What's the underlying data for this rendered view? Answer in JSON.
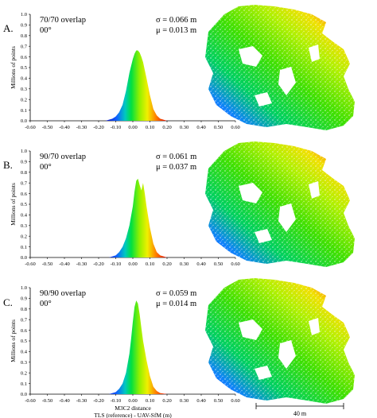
{
  "panels": [
    {
      "letter": "A.",
      "overlap": "70/70 overlap",
      "angle": "00°",
      "sigma": "σ = 0.066 m",
      "mu": "μ = 0.013 m"
    },
    {
      "letter": "B.",
      "overlap": "90/70 overlap",
      "angle": "00°",
      "sigma": "σ = 0.061 m",
      "mu": "μ = 0.037 m"
    },
    {
      "letter": "C.",
      "overlap": "90/90 overlap",
      "angle": "00°",
      "sigma": "σ = 0.059 m",
      "mu": "μ = 0.014 m"
    }
  ],
  "chart_data": [
    {
      "type": "area",
      "ylabel": "Millions of points",
      "xlim": [
        -0.6,
        0.6
      ],
      "ylim": [
        0,
        1.0
      ],
      "x_ticks": [
        "-0.60",
        "-0.50",
        "-0.40",
        "-0.30",
        "-0.20",
        "-0.10",
        "0.00",
        "0.10",
        "0.20",
        "0.30",
        "0.40",
        "0.50",
        "0.60"
      ],
      "y_ticks": [
        "0.0",
        "0.1",
        "0.2",
        "0.3",
        "0.4",
        "0.5",
        "0.6",
        "0.7",
        "0.8",
        "0.9",
        "1.0"
      ],
      "x": [
        -0.16,
        -0.12,
        -0.1,
        -0.08,
        -0.06,
        -0.04,
        -0.02,
        0.0,
        0.01,
        0.02,
        0.03,
        0.04,
        0.05,
        0.06,
        0.08,
        0.1,
        0.12,
        0.14,
        0.16,
        0.2
      ],
      "values": [
        0.0,
        0.02,
        0.04,
        0.08,
        0.15,
        0.28,
        0.45,
        0.58,
        0.63,
        0.66,
        0.66,
        0.64,
        0.6,
        0.55,
        0.4,
        0.24,
        0.11,
        0.05,
        0.02,
        0.0
      ]
    },
    {
      "type": "area",
      "ylabel": "Millions of points",
      "xlim": [
        -0.6,
        0.6
      ],
      "ylim": [
        0,
        1.0
      ],
      "x_ticks": [
        "-0.60",
        "-0.50",
        "-0.40",
        "-0.30",
        "-0.20",
        "-0.10",
        "0.00",
        "0.10",
        "0.20",
        "0.30",
        "0.40",
        "0.50",
        "0.60"
      ],
      "y_ticks": [
        "0.0",
        "0.1",
        "0.2",
        "0.3",
        "0.4",
        "0.5",
        "0.6",
        "0.7",
        "0.8",
        "0.9",
        "1.0"
      ],
      "x": [
        -0.14,
        -0.1,
        -0.08,
        -0.06,
        -0.04,
        -0.02,
        0.0,
        0.01,
        0.02,
        0.03,
        0.04,
        0.05,
        0.06,
        0.07,
        0.08,
        0.1,
        0.12,
        0.14,
        0.16,
        0.2
      ],
      "values": [
        0.0,
        0.02,
        0.05,
        0.1,
        0.18,
        0.3,
        0.48,
        0.62,
        0.72,
        0.74,
        0.68,
        0.63,
        0.7,
        0.6,
        0.48,
        0.28,
        0.13,
        0.05,
        0.02,
        0.0
      ]
    },
    {
      "type": "area",
      "ylabel": "Millions of points",
      "xlabel": "M3C2 distance\nTLS (reference) - UAV-SfM (m)",
      "xlim": [
        -0.6,
        0.6
      ],
      "ylim": [
        0,
        1.0
      ],
      "x_ticks": [
        "-0.60",
        "-0.50",
        "-0.40",
        "-0.30",
        "-0.20",
        "-0.10",
        "0.00",
        "0.10",
        "0.20",
        "0.30",
        "0.40",
        "0.50",
        "0.60"
      ],
      "y_ticks": [
        "0.0",
        "0.1",
        "0.2",
        "0.3",
        "0.4",
        "0.5",
        "0.6",
        "0.7",
        "0.8",
        "0.9",
        "1.0"
      ],
      "x": [
        -0.14,
        -0.1,
        -0.08,
        -0.06,
        -0.04,
        -0.02,
        -0.01,
        0.0,
        0.01,
        0.02,
        0.03,
        0.04,
        0.05,
        0.06,
        0.08,
        0.1,
        0.12,
        0.14,
        0.16,
        0.2
      ],
      "values": [
        0.0,
        0.02,
        0.05,
        0.1,
        0.2,
        0.38,
        0.52,
        0.68,
        0.82,
        0.88,
        0.85,
        0.75,
        0.62,
        0.5,
        0.32,
        0.17,
        0.07,
        0.03,
        0.01,
        0.0
      ]
    }
  ],
  "xlabel_line1": "M3C2 distance",
  "xlabel_line2": "TLS (reference) - UAV-SfM (m)",
  "scale_bar_label": "40 m"
}
